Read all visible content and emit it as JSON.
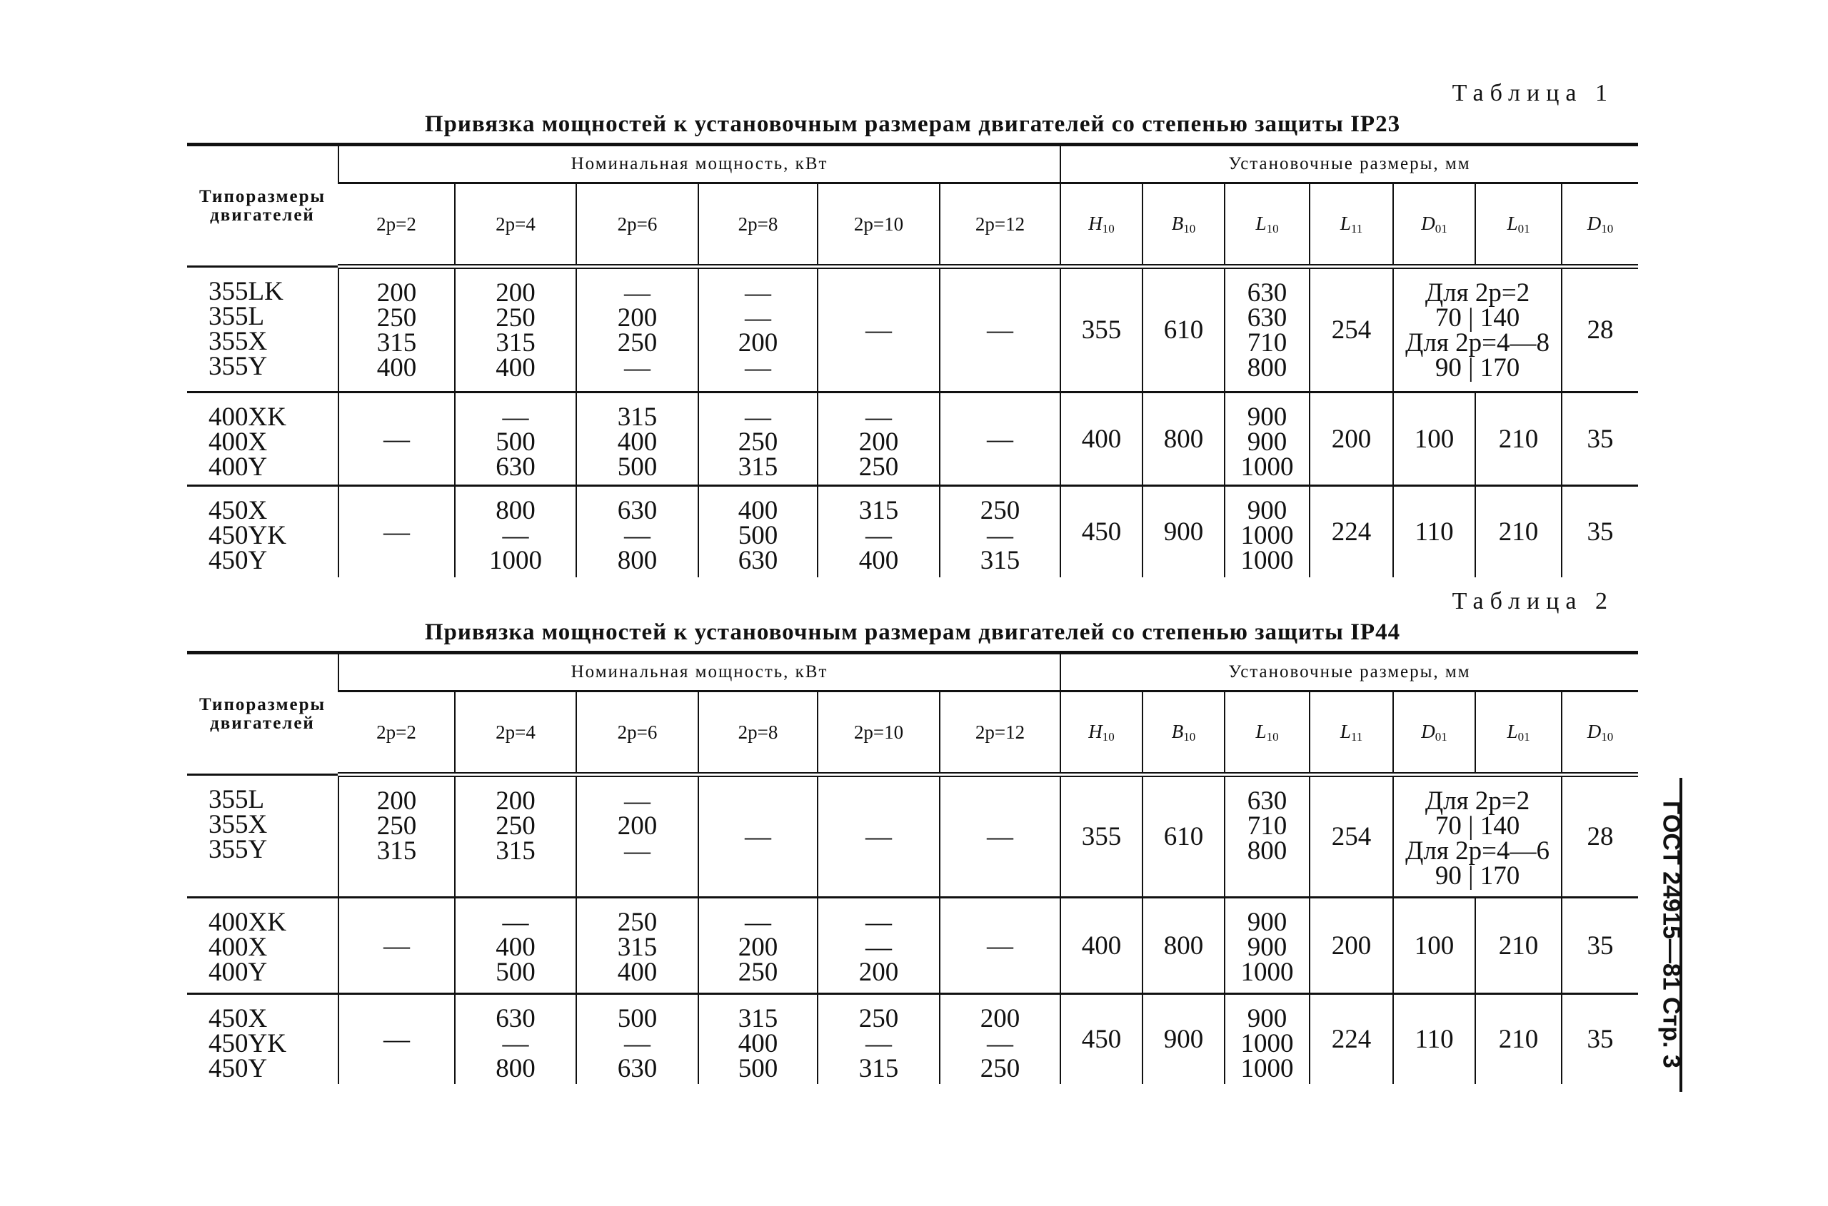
{
  "side_header": "ГОСТ 24915—81 Стр. 3",
  "tables": [
    {
      "label": "Таблица 1",
      "caption": "Привязка мощностей к установочным размерам двигателей со степенью защиты IP23",
      "motor_header": [
        "Типоразмеры",
        "двигателей"
      ],
      "power_group": "Номинальная мощность, кВт",
      "dims_group": "Установочные размеры, мм",
      "power_cols": [
        "2p=2",
        "2p=4",
        "2p=6",
        "2p=8",
        "2p=10",
        "2p=12"
      ],
      "dim_cols": [
        {
          "base": "H",
          "sub": "10"
        },
        {
          "base": "B",
          "sub": "10"
        },
        {
          "base": "L",
          "sub": "10"
        },
        {
          "base": "L",
          "sub": "11"
        },
        {
          "base": "D",
          "sub": "01"
        },
        {
          "base": "L",
          "sub": "01"
        },
        {
          "base": "D",
          "sub": "10"
        }
      ],
      "rows": [
        {
          "motors": [
            "355LK",
            "355L",
            "355X",
            "355Y"
          ],
          "power": [
            [
              "200",
              "250",
              "315",
              "400"
            ],
            [
              "200",
              "250",
              "315",
              "400"
            ],
            [
              "—",
              "200",
              "250",
              "—"
            ],
            [
              "—",
              "—",
              "200",
              "—"
            ],
            [
              "—"
            ],
            [
              "—"
            ]
          ],
          "dims": {
            "H10": "355",
            "B10": "610",
            "L10": [
              "630",
              "630",
              "710",
              "800"
            ],
            "L11": "254",
            "mount_note": [
              "Для 2p=2",
              "70 | 140",
              "Для 2p=4—8",
              "90 | 170"
            ],
            "D10": "28"
          }
        },
        {
          "motors": [
            "400XK",
            "400X",
            "400Y"
          ],
          "power": [
            [
              "—"
            ],
            [
              "—",
              "500",
              "630"
            ],
            [
              "315",
              "400",
              "500"
            ],
            [
              "—",
              "250",
              "315"
            ],
            [
              "—",
              "200",
              "250"
            ],
            [
              "—"
            ]
          ],
          "dims": {
            "H10": "400",
            "B10": "800",
            "L10": [
              "900",
              "900",
              "1000"
            ],
            "L11": "200",
            "D01": "100",
            "L01": "210",
            "D10": "35"
          }
        },
        {
          "motors": [
            "450X",
            "450YK",
            "450Y"
          ],
          "power": [
            [
              "—"
            ],
            [
              "800",
              "—",
              "1000"
            ],
            [
              "630",
              "—",
              "800"
            ],
            [
              "400",
              "500",
              "630"
            ],
            [
              "315",
              "—",
              "400"
            ],
            [
              "250",
              "—",
              "315"
            ]
          ],
          "dims": {
            "H10": "450",
            "B10": "900",
            "L10": [
              "900",
              "1000",
              "1000"
            ],
            "L11": "224",
            "D01": "110",
            "L01": "210",
            "D10": "35"
          }
        }
      ]
    },
    {
      "label": "Таблица 2",
      "caption": "Привязка мощностей к установочным размерам двигателей со степенью защиты IP44",
      "motor_header": [
        "Типоразмеры",
        "двигателей"
      ],
      "power_group": "Номинальная мощность, кВт",
      "dims_group": "Установочные размеры, мм",
      "power_cols": [
        "2p=2",
        "2p=4",
        "2p=6",
        "2p=8",
        "2p=10",
        "2p=12"
      ],
      "dim_cols": [
        {
          "base": "H",
          "sub": "10"
        },
        {
          "base": "B",
          "sub": "10"
        },
        {
          "base": "L",
          "sub": "10"
        },
        {
          "base": "L",
          "sub": "11"
        },
        {
          "base": "D",
          "sub": "01"
        },
        {
          "base": "L",
          "sub": "01"
        },
        {
          "base": "D",
          "sub": "10"
        }
      ],
      "rows": [
        {
          "motors": [
            "355L",
            "355X",
            "355Y"
          ],
          "power": [
            [
              "200",
              "250",
              "315"
            ],
            [
              "200",
              "250",
              "315"
            ],
            [
              "—",
              "200",
              "—"
            ],
            [
              "—"
            ],
            [
              "—"
            ],
            [
              "—"
            ]
          ],
          "dims": {
            "H10": "355",
            "B10": "610",
            "L10": [
              "630",
              "710",
              "800"
            ],
            "L11": "254",
            "mount_note": [
              "Для 2p=2",
              "70 | 140",
              "Для 2p=4—6",
              "90 | 170"
            ],
            "D10": "28"
          }
        },
        {
          "motors": [
            "400XK",
            "400X",
            "400Y"
          ],
          "power": [
            [
              "—"
            ],
            [
              "—",
              "400",
              "500"
            ],
            [
              "250",
              "315",
              "400"
            ],
            [
              "—",
              "200",
              "250"
            ],
            [
              "—",
              "—",
              "200"
            ],
            [
              "—"
            ]
          ],
          "dims": {
            "H10": "400",
            "B10": "800",
            "L10": [
              "900",
              "900",
              "1000"
            ],
            "L11": "200",
            "D01": "100",
            "L01": "210",
            "D10": "35"
          }
        },
        {
          "motors": [
            "450X",
            "450YK",
            "450Y"
          ],
          "power": [
            [
              "—"
            ],
            [
              "630",
              "—",
              "800"
            ],
            [
              "500",
              "—",
              "630"
            ],
            [
              "315",
              "400",
              "500"
            ],
            [
              "250",
              "—",
              "315"
            ],
            [
              "200",
              "—",
              "250"
            ]
          ],
          "dims": {
            "H10": "450",
            "B10": "900",
            "L10": [
              "900",
              "1000",
              "1000"
            ],
            "L11": "224",
            "D01": "110",
            "L01": "210",
            "D10": "35"
          }
        }
      ]
    }
  ]
}
